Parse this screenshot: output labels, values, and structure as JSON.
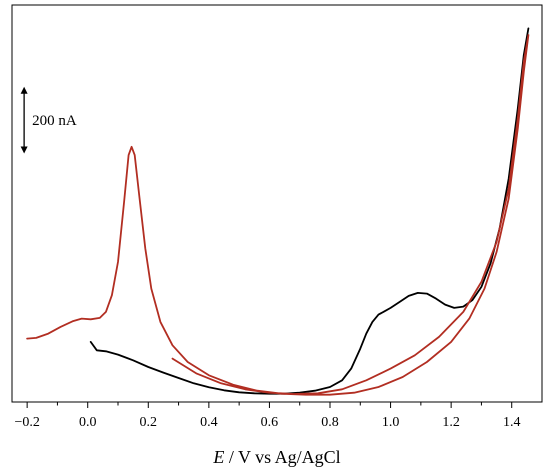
{
  "chart_data": {
    "type": "line",
    "xlabel_italic": "E",
    "xlabel_rest": " / V vs Ag/AgCl",
    "ylabel": "",
    "xlim": [
      -0.25,
      1.5
    ],
    "x_ticks": [
      -0.2,
      0.0,
      0.2,
      0.4,
      0.6,
      0.8,
      1.0,
      1.2,
      1.4
    ],
    "x_tick_labels": [
      "−0.2",
      "0.0",
      "0.2",
      "0.4",
      "0.6",
      "0.8",
      "1.0",
      "1.2",
      "1.4"
    ],
    "y_unit": "nA",
    "ylim": [
      -20,
      1170
    ],
    "grid": false,
    "scale_bar": {
      "label": "200 nA",
      "value": 200,
      "x": -0.21,
      "y_bottom": 725
    },
    "series": [
      {
        "color": "#000000",
        "points": [
          [
            0.01,
            160
          ],
          [
            0.03,
            135
          ],
          [
            0.06,
            132
          ],
          [
            0.1,
            122
          ],
          [
            0.15,
            105
          ],
          [
            0.2,
            85
          ],
          [
            0.25,
            68
          ],
          [
            0.3,
            52
          ],
          [
            0.35,
            36
          ],
          [
            0.4,
            24
          ],
          [
            0.45,
            15
          ],
          [
            0.5,
            9
          ],
          [
            0.55,
            6
          ],
          [
            0.6,
            5
          ],
          [
            0.65,
            5
          ],
          [
            0.7,
            8
          ],
          [
            0.75,
            14
          ],
          [
            0.8,
            25
          ],
          [
            0.84,
            45
          ],
          [
            0.87,
            80
          ],
          [
            0.9,
            140
          ],
          [
            0.92,
            185
          ],
          [
            0.94,
            220
          ],
          [
            0.96,
            242
          ],
          [
            0.98,
            252
          ],
          [
            1.0,
            262
          ],
          [
            1.03,
            280
          ],
          [
            1.06,
            298
          ],
          [
            1.09,
            307
          ],
          [
            1.12,
            305
          ],
          [
            1.15,
            290
          ],
          [
            1.18,
            272
          ],
          [
            1.21,
            262
          ],
          [
            1.24,
            266
          ],
          [
            1.27,
            285
          ],
          [
            1.3,
            325
          ],
          [
            1.33,
            395
          ],
          [
            1.36,
            500
          ],
          [
            1.39,
            650
          ],
          [
            1.42,
            860
          ],
          [
            1.44,
            1020
          ],
          [
            1.455,
            1100
          ]
        ]
      },
      {
        "color": "#b22e22",
        "points": [
          [
            -0.2,
            170
          ],
          [
            -0.17,
            172
          ],
          [
            -0.13,
            185
          ],
          [
            -0.09,
            205
          ],
          [
            -0.05,
            222
          ],
          [
            -0.02,
            230
          ],
          [
            0.01,
            228
          ],
          [
            0.04,
            232
          ],
          [
            0.06,
            250
          ],
          [
            0.08,
            300
          ],
          [
            0.1,
            400
          ],
          [
            0.12,
            580
          ],
          [
            0.135,
            720
          ],
          [
            0.145,
            745
          ],
          [
            0.155,
            720
          ],
          [
            0.17,
            600
          ],
          [
            0.19,
            440
          ],
          [
            0.21,
            320
          ],
          [
            0.24,
            220
          ],
          [
            0.28,
            150
          ],
          [
            0.33,
            100
          ],
          [
            0.4,
            60
          ],
          [
            0.48,
            32
          ],
          [
            0.56,
            14
          ],
          [
            0.64,
            5
          ],
          [
            0.72,
            2
          ],
          [
            0.8,
            2
          ],
          [
            0.88,
            8
          ],
          [
            0.96,
            25
          ],
          [
            1.04,
            55
          ],
          [
            1.12,
            100
          ],
          [
            1.2,
            160
          ],
          [
            1.26,
            230
          ],
          [
            1.31,
            320
          ],
          [
            1.35,
            430
          ],
          [
            1.39,
            590
          ],
          [
            1.42,
            800
          ],
          [
            1.44,
            970
          ],
          [
            1.455,
            1080
          ],
          [
            1.44,
            1000
          ],
          [
            1.42,
            830
          ],
          [
            1.39,
            620
          ],
          [
            1.35,
            460
          ],
          [
            1.3,
            340
          ],
          [
            1.24,
            250
          ],
          [
            1.16,
            175
          ],
          [
            1.08,
            120
          ],
          [
            1.0,
            80
          ],
          [
            0.92,
            45
          ],
          [
            0.84,
            18
          ],
          [
            0.76,
            6
          ],
          [
            0.68,
            4
          ],
          [
            0.6,
            8
          ],
          [
            0.52,
            18
          ],
          [
            0.44,
            36
          ],
          [
            0.36,
            65
          ],
          [
            0.28,
            110
          ]
        ]
      }
    ]
  }
}
